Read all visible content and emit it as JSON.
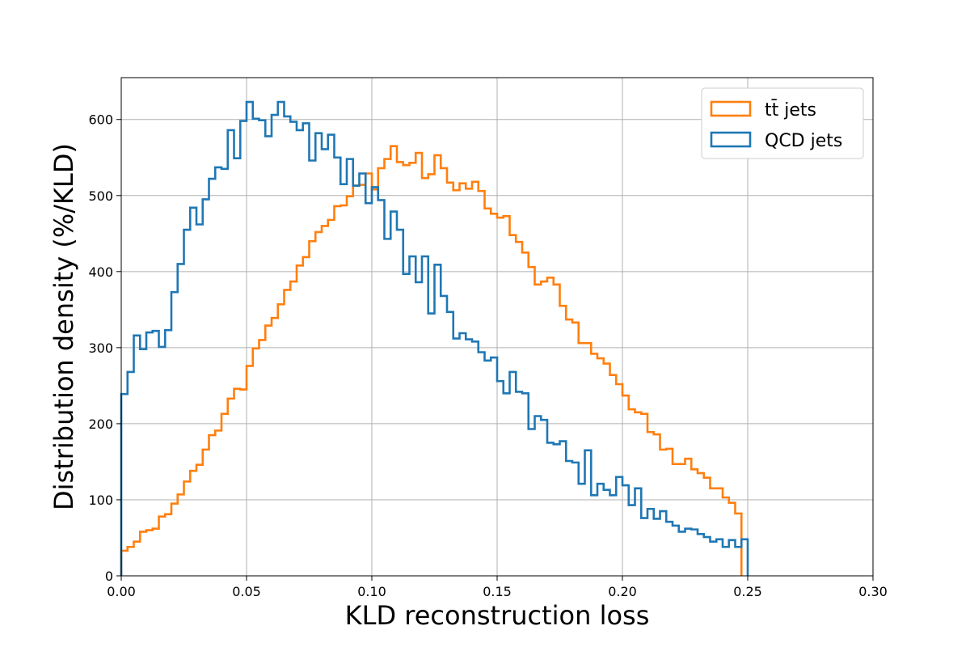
{
  "chart_data": {
    "type": "histogram",
    "xlabel": "KLD reconstruction loss",
    "ylabel": "Distribution density (%/KLD)",
    "xlim": [
      0.0,
      0.3
    ],
    "ylim": [
      0,
      655
    ],
    "grid": true,
    "legend_position": "top-right",
    "x_ticks": [
      "0.00",
      "0.05",
      "0.10",
      "0.15",
      "0.20",
      "0.25",
      "0.30"
    ],
    "y_ticks": [
      "0",
      "100",
      "200",
      "300",
      "400",
      "500",
      "600"
    ],
    "bin_width": 0.0025,
    "series": [
      {
        "name": "tt̄ jets",
        "color": "#ff7f0e",
        "values": [
          33,
          38,
          45,
          58,
          60,
          62,
          78,
          81,
          95,
          107,
          124,
          138,
          146,
          166,
          185,
          191,
          213,
          233,
          246,
          245,
          276,
          299,
          310,
          329,
          339,
          357,
          376,
          387,
          408,
          419,
          440,
          452,
          460,
          468,
          486,
          487,
          499,
          513,
          514,
          529,
          508,
          536,
          548,
          565,
          544,
          540,
          543,
          556,
          523,
          528,
          553,
          536,
          517,
          507,
          516,
          509,
          518,
          506,
          483,
          476,
          471,
          473,
          448,
          439,
          425,
          406,
          383,
          387,
          392,
          383,
          355,
          337,
          333,
          306,
          306,
          292,
          286,
          279,
          264,
          252,
          237,
          219,
          215,
          213,
          189,
          186,
          166,
          167,
          147,
          147,
          154,
          140,
          135,
          129,
          115,
          115,
          103,
          96,
          82
        ]
      },
      {
        "name": "QCD jets",
        "color": "#1f77b4",
        "values": [
          239,
          268,
          316,
          298,
          320,
          322,
          301,
          323,
          373,
          410,
          455,
          484,
          462,
          495,
          522,
          537,
          535,
          586,
          549,
          598,
          623,
          601,
          599,
          578,
          606,
          623,
          604,
          597,
          586,
          595,
          546,
          582,
          561,
          580,
          550,
          515,
          548,
          513,
          529,
          490,
          511,
          494,
          443,
          479,
          455,
          397,
          420,
          386,
          420,
          345,
          409,
          368,
          347,
          312,
          319,
          311,
          308,
          294,
          283,
          287,
          256,
          240,
          268,
          242,
          240,
          193,
          210,
          205,
          175,
          173,
          177,
          151,
          149,
          121,
          165,
          106,
          121,
          113,
          106,
          130,
          119,
          93,
          115,
          76,
          88,
          75,
          85,
          71,
          66,
          58,
          62,
          61,
          55,
          51,
          45,
          48,
          38,
          47,
          38,
          48
        ]
      }
    ]
  }
}
